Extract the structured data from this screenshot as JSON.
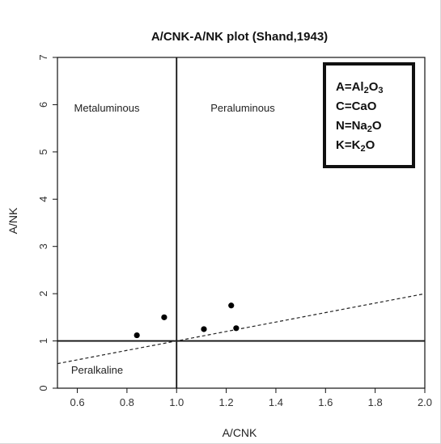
{
  "chart_data": {
    "type": "scatter",
    "title": "A/CNK-A/NK plot (Shand,1943)",
    "xlabel": "A/CNK",
    "ylabel": "A/NK",
    "xlim": [
      0.52,
      2.0
    ],
    "ylim": [
      0,
      7
    ],
    "x_ticks": [
      "0.6",
      "0.8",
      "1.0",
      "1.2",
      "1.4",
      "1.6",
      "1.8",
      "2.0"
    ],
    "y_ticks": [
      "0",
      "1",
      "2",
      "3",
      "4",
      "5",
      "6",
      "7"
    ],
    "grid": false,
    "series": [
      {
        "points": [
          {
            "x": 0.84,
            "y": 1.12
          },
          {
            "x": 0.95,
            "y": 1.5
          },
          {
            "x": 1.11,
            "y": 1.25
          },
          {
            "x": 1.22,
            "y": 1.75
          },
          {
            "x": 1.24,
            "y": 1.27
          }
        ]
      }
    ],
    "divider_lines": {
      "vertical_x": 1.0,
      "horizontal_y": 1.0
    },
    "dashed_line": {
      "points": [
        {
          "x": 0.52,
          "y": 0.52
        },
        {
          "x": 2.0,
          "y": 2.0
        }
      ]
    },
    "regions": {
      "metaluminous": "Metaluminous",
      "peraluminous": "Peraluminous",
      "peralkaline": "Peralkaline"
    },
    "legend": {
      "placement": "top-right",
      "entries": [
        {
          "lhs": "A=Al",
          "s1": "2",
          "mid": "O",
          "s2": "3"
        },
        {
          "lhs": "C=CaO",
          "s1": "",
          "mid": "",
          "s2": ""
        },
        {
          "lhs": "N=Na",
          "s1": "2",
          "mid": "O",
          "s2": ""
        },
        {
          "lhs": "K=K",
          "s1": "2",
          "mid": "O",
          "s2": ""
        }
      ]
    }
  }
}
